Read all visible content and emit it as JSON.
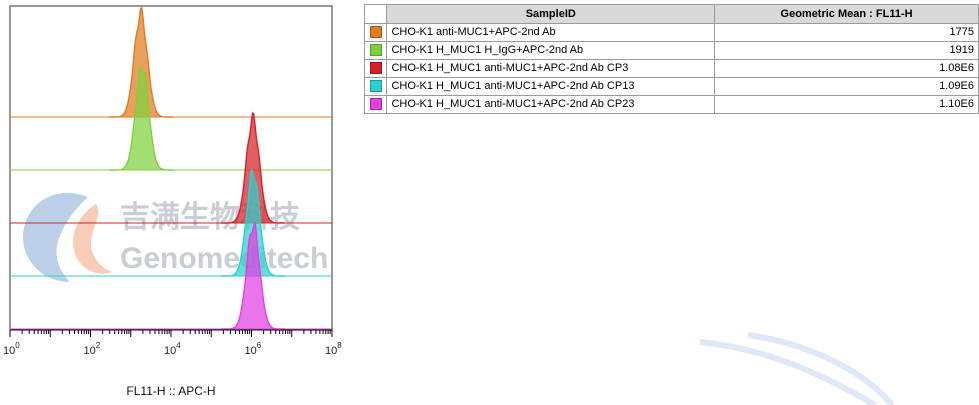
{
  "chart_data": {
    "type": "histogram",
    "layout": "staggered overlay (offset stack)",
    "x_scale": "log",
    "xlim": [
      1,
      100000000
    ],
    "xlabel": "FL11-H :: APC-H",
    "x_ticks": [
      {
        "base": "10",
        "exp": "0",
        "value": 1
      },
      {
        "base": "10",
        "exp": "2",
        "value": 100
      },
      {
        "base": "10",
        "exp": "4",
        "value": 10000
      },
      {
        "base": "10",
        "exp": "6",
        "value": 1000000
      },
      {
        "base": "10",
        "exp": "8",
        "value": 100000000
      }
    ],
    "series": [
      {
        "sample_id": "CHO-K1 anti-MUC1+APC-2nd Ab",
        "geometric_mean": "1775",
        "peak_x": 1775,
        "color": "#e07b1f"
      },
      {
        "sample_id": "CHO-K1 H_MUC1 H_IgG+APC-2nd Ab",
        "geometric_mean": "1919",
        "peak_x": 1919,
        "color": "#7fd13b"
      },
      {
        "sample_id": "CHO-K1 H_MUC1 anti-MUC1+APC-2nd Ab CP3",
        "geometric_mean": "1.08E6",
        "peak_x": 1080000,
        "color": "#d62027"
      },
      {
        "sample_id": "CHO-K1 H_MUC1 anti-MUC1+APC-2nd Ab CP13",
        "geometric_mean": "1.09E6",
        "peak_x": 1090000,
        "color": "#2ccfcf"
      },
      {
        "sample_id": "CHO-K1 H_MUC1 anti-MUC1+APC-2nd Ab CP23",
        "geometric_mean": "1.10E6",
        "peak_x": 1100000,
        "color": "#e23ee0"
      }
    ],
    "table": {
      "headers": [
        "SampleID",
        "Geometric Mean : FL11-H"
      ]
    },
    "grid": false,
    "legend": "table, top-right"
  },
  "watermark": {
    "chinese": "吉满生物科技",
    "english": "Genomeditech"
  }
}
